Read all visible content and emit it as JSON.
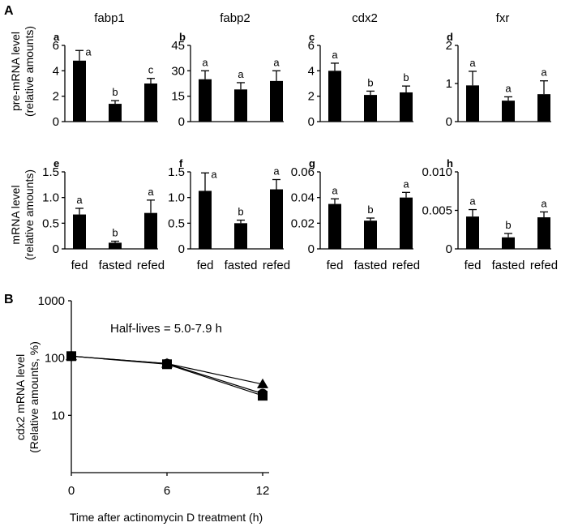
{
  "section_labels": {
    "a": "A",
    "b": "B"
  },
  "gene_titles": [
    "fabp1",
    "fabp2",
    "cdx2",
    "fxr"
  ],
  "y_label_top": [
    "pre-mRNA level",
    "(relative amounts)"
  ],
  "y_label_bottom": [
    "mRNA level",
    "(relative amounts)"
  ],
  "y_label_b": [
    "cdx2 mRNA level",
    "(Relative amounts, %)"
  ],
  "x_label_b": "Time after actinomycin D treatment (h)",
  "annotation_b": "Half-lives = 5.0-7.9 h",
  "chart_data": [
    {
      "type": "bar",
      "panel": "a",
      "title": "fabp1",
      "ylabel": "pre-mRNA level (relative amounts)",
      "categories": [
        "fed",
        "fasted",
        "refed"
      ],
      "values": [
        4.8,
        1.4,
        3.0
      ],
      "errors": [
        0.8,
        0.25,
        0.4
      ],
      "significance": [
        "a",
        "b",
        "c"
      ],
      "ylim": [
        0,
        6
      ],
      "yticks": [
        "0",
        "2",
        "4",
        "6"
      ]
    },
    {
      "type": "bar",
      "panel": "b",
      "title": "fabp2",
      "categories": [
        "fed",
        "fasted",
        "refed"
      ],
      "values": [
        25,
        19,
        24
      ],
      "errors": [
        5,
        4,
        6
      ],
      "significance": [
        "a",
        "a",
        "a"
      ],
      "ylim": [
        0,
        45
      ],
      "yticks": [
        "0",
        "15",
        "30",
        "45"
      ]
    },
    {
      "type": "bar",
      "panel": "c",
      "title": "cdx2",
      "categories": [
        "fed",
        "fasted",
        "refed"
      ],
      "values": [
        4.0,
        2.1,
        2.3
      ],
      "errors": [
        0.6,
        0.3,
        0.5
      ],
      "significance": [
        "a",
        "b",
        "b"
      ],
      "ylim": [
        0,
        6
      ],
      "yticks": [
        "0",
        "2",
        "4",
        "6"
      ]
    },
    {
      "type": "bar",
      "panel": "d",
      "title": "fxr",
      "categories": [
        "fed",
        "fasted",
        "refed"
      ],
      "values": [
        0.95,
        0.55,
        0.72
      ],
      "errors": [
        0.37,
        0.1,
        0.35
      ],
      "significance": [
        "a",
        "a",
        "a"
      ],
      "ylim": [
        0,
        2
      ],
      "yticks": [
        "0",
        "1",
        "2"
      ]
    },
    {
      "type": "bar",
      "panel": "e",
      "ylabel": "mRNA level (relative amounts)",
      "categories": [
        "fed",
        "fasted",
        "refed"
      ],
      "values": [
        0.67,
        0.12,
        0.7
      ],
      "errors": [
        0.12,
        0.03,
        0.25
      ],
      "significance": [
        "a",
        "b",
        "a"
      ],
      "ylim": [
        0,
        1.5
      ],
      "yticks": [
        "0",
        "0.5",
        "1.0",
        "1.5"
      ]
    },
    {
      "type": "bar",
      "panel": "f",
      "categories": [
        "fed",
        "fasted",
        "refed"
      ],
      "values": [
        1.13,
        0.5,
        1.16
      ],
      "errors": [
        0.35,
        0.06,
        0.19
      ],
      "significance": [
        "a",
        "b",
        "a"
      ],
      "ylim": [
        0,
        1.5
      ],
      "yticks": [
        "0",
        "0.5",
        "1.0",
        "1.5"
      ]
    },
    {
      "type": "bar",
      "panel": "g",
      "categories": [
        "fed",
        "fasted",
        "refed"
      ],
      "values": [
        0.035,
        0.022,
        0.04
      ],
      "errors": [
        0.004,
        0.002,
        0.004
      ],
      "significance": [
        "a",
        "b",
        "a"
      ],
      "ylim": [
        0,
        0.06
      ],
      "yticks": [
        "0",
        "0.02",
        "0.04",
        "0.06"
      ]
    },
    {
      "type": "bar",
      "panel": "h",
      "categories": [
        "fed",
        "fasted",
        "refed"
      ],
      "values": [
        0.0042,
        0.0015,
        0.0041
      ],
      "errors": [
        0.0009,
        0.0005,
        0.0007
      ],
      "significance": [
        "a",
        "b",
        "a"
      ],
      "ylim": [
        0,
        0.01
      ],
      "yticks": [
        "0",
        "0.005",
        "0.010"
      ]
    },
    {
      "type": "line",
      "panel": "B",
      "xlabel": "Time after actinomycin D treatment (h)",
      "ylabel": "cdx2 mRNA level (Relative amounts, %)",
      "yscale": "log",
      "xlim": [
        0,
        12
      ],
      "ylim": [
        1,
        1000
      ],
      "xticks": [
        "0",
        "6",
        "12"
      ],
      "yticks": [
        "10",
        "100",
        "1000"
      ],
      "x": [
        0,
        6,
        12
      ],
      "series": [
        {
          "marker": "triangle",
          "values": [
            108,
            80,
            35
          ]
        },
        {
          "marker": "circle",
          "values": [
            108,
            80,
            24
          ]
        },
        {
          "marker": "square",
          "values": [
            108,
            78,
            22
          ]
        }
      ]
    }
  ]
}
